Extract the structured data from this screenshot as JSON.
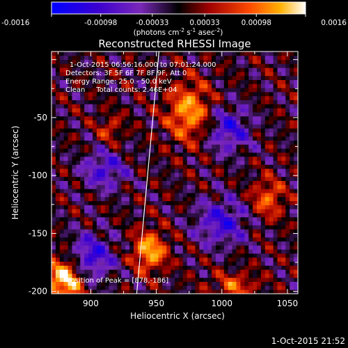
{
  "chart_data": {
    "type": "heatmap",
    "title": "Reconstructed RHESSI Image",
    "xlabel": "Heliocentric X (arcsec)",
    "ylabel": "Heliocentric Y (arcsec)",
    "xlim": [
      870,
      1058
    ],
    "ylim": [
      -202,
      7
    ],
    "xticks": [
      900,
      950,
      1000,
      1050
    ],
    "xtick_labels": [
      "900",
      "950",
      "1000",
      "1050"
    ],
    "yticks": [
      -50,
      -100,
      -150,
      -200
    ],
    "ytick_labels": [
      "-50",
      "-100",
      "-150",
      "-200"
    ],
    "colorbar": {
      "range": [
        -0.0016,
        0.0016
      ],
      "tick_values": [
        -0.0016,
        -0.00098,
        -0.00033,
        0.00033,
        0.00098,
        0.0016
      ],
      "tick_labels": [
        "-0.0016",
        "-0.00098",
        "-0.00033",
        "0.00033",
        "0.00098",
        "0.0016"
      ],
      "units_base": "(photons cm",
      "units_sup1": "-2",
      "units_mid1": " s",
      "units_sup2": "-1",
      "units_mid2": " asec",
      "units_sup3": "-2",
      "units_end": ")"
    },
    "annotations": [
      "1-Oct-2015 06:56:16.000 to 07:01:24.000",
      "Detectors: 3F 5F 6F 7F 8F 9F, Att 0",
      "Energy Range: 25.0 - 50.0 keV",
      "Clean     Total counts: 2.46E+04"
    ],
    "peak_label": "Position of Peak = [878,-186]",
    "peak": [
      878,
      -186
    ],
    "limb_line": [
      [
        935,
        -202
      ],
      [
        952,
        7
      ]
    ],
    "grid": false,
    "sources": [
      {
        "x": 880,
        "y": -190,
        "amp": 0.0016,
        "sx": 10,
        "sy": 14
      },
      {
        "x": 945,
        "y": -165,
        "amp": 0.0013,
        "sx": 9,
        "sy": 12
      },
      {
        "x": 975,
        "y": -45,
        "amp": 0.0012,
        "sx": 12,
        "sy": 18
      },
      {
        "x": 1035,
        "y": -120,
        "amp": 0.0009,
        "sx": 9,
        "sy": 12
      },
      {
        "x": 1010,
        "y": -195,
        "amp": 0.0008,
        "sx": 12,
        "sy": 8
      },
      {
        "x": 915,
        "y": -60,
        "amp": 0.0006,
        "sx": 7,
        "sy": 9
      },
      {
        "x": 900,
        "y": -170,
        "amp": -0.0011,
        "sx": 12,
        "sy": 14
      },
      {
        "x": 1000,
        "y": -140,
        "amp": -0.001,
        "sx": 14,
        "sy": 14
      },
      {
        "x": 1005,
        "y": -60,
        "amp": -0.001,
        "sx": 12,
        "sy": 14
      },
      {
        "x": 910,
        "y": -95,
        "amp": -0.0009,
        "sx": 12,
        "sy": 12
      }
    ]
  },
  "footer": {
    "timestamp": "1-Oct-2015 21:52"
  }
}
